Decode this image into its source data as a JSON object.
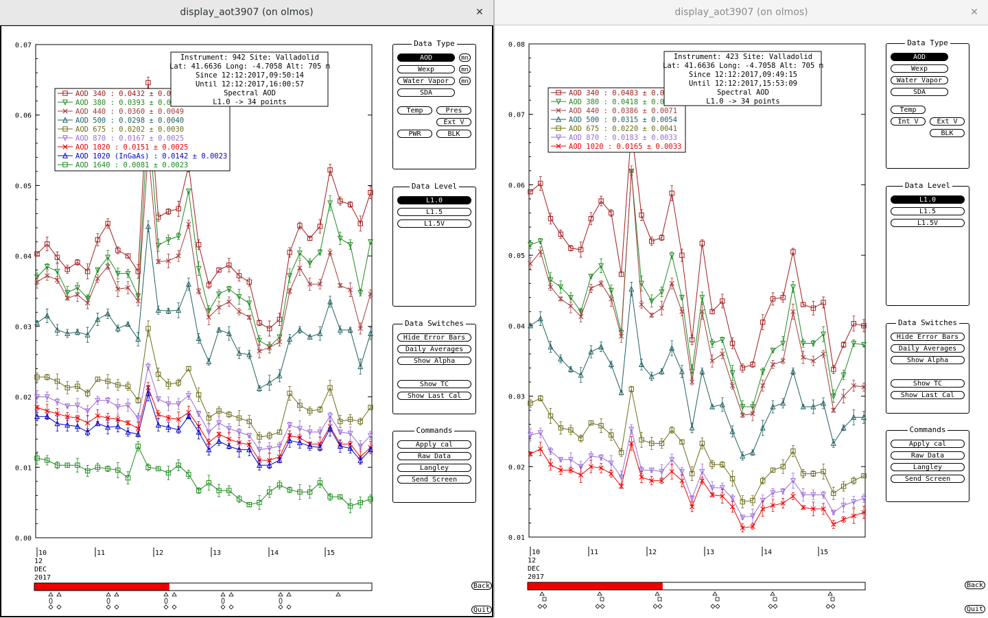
{
  "windows": [
    {
      "title": "display_aot3907 (on olmos)",
      "close_glyph": "✕",
      "info": [
        "Instrument: 942 Site: Valladolid",
        "Lat: 41.6636 Long: -4.7058 Alt: 705 m",
        "Since 12:12:2017,09:50:14",
        "Until 12:12:2017,16:00:57",
        "Spectral AOD",
        "L1.0 -> 34 points"
      ],
      "legend": [
        {
          "text": "AOD 340  : 0.0432 ± 0.0",
          "color": "#a51a1a",
          "marker": "square"
        },
        {
          "text": "AOD 380  : 0.0393 ± 0.0",
          "color": "#1f8a1f",
          "marker": "tridown"
        },
        {
          "text": "AOD 440  : 0.0360 ± 0.0049",
          "color": "#a53a3a",
          "marker": "x"
        },
        {
          "text": "AOD 500  : 0.0298 ± 0.0040",
          "color": "#1f5f5f",
          "marker": "triup"
        },
        {
          "text": "AOD 675  : 0.0202 ± 0.0030",
          "color": "#6b6b1a",
          "marker": "square"
        },
        {
          "text": "AOD 870  : 0.0167 ± 0.0025",
          "color": "#9a6ad8",
          "marker": "tridown"
        },
        {
          "text": "AOD 1020  : 0.0151 ± 0.0025",
          "color": "#ee0000",
          "marker": "x"
        },
        {
          "text": "AOD 1020 (InGaAs)  : 0.0142 ± 0.0023",
          "color": "#0000cc",
          "marker": "triup"
        },
        {
          "text": "AOD 1640  : 0.0081 ± 0.0023",
          "color": "#1a8a1a",
          "marker": "square"
        }
      ],
      "y_ticks": [
        "0.07",
        "0.06",
        "0.05",
        "0.04",
        "0.03",
        "0.02",
        "0.01",
        "0.00"
      ],
      "ylim": [
        0.0,
        0.07
      ],
      "day_ticks": [
        "10",
        "11",
        "12",
        "13",
        "14",
        "15"
      ],
      "date_lines": [
        "12",
        "DEC",
        "2017"
      ],
      "int_v": false
    },
    {
      "title": "display_aot3907 (on olmos)",
      "close_glyph": "✕",
      "info": [
        "Instrument: 423 Site: Valladolid",
        "Lat: 41.6636 Long: -4.7058 Alt: 705 m",
        "Since 12:12:2017,09:49:15",
        "Until 12:12:2017,15:53:09",
        "Spectral AOD",
        "L1.0 -> 34 points"
      ],
      "legend": [
        {
          "text": "AOD 340  : 0.0483 ± 0.0",
          "color": "#a51a1a",
          "marker": "square"
        },
        {
          "text": "AOD 380  : 0.0418 ± 0.0",
          "color": "#1f8a1f",
          "marker": "tridown"
        },
        {
          "text": "AOD 440  : 0.0386 ± 0.0071",
          "color": "#a53a3a",
          "marker": "x"
        },
        {
          "text": "AOD 500  : 0.0315 ± 0.0054",
          "color": "#1f5f5f",
          "marker": "triup"
        },
        {
          "text": "AOD 675  : 0.0220 ± 0.0041",
          "color": "#6b6b1a",
          "marker": "square"
        },
        {
          "text": "AOD 870  : 0.0183 ± 0.0033",
          "color": "#9a6ad8",
          "marker": "tridown"
        },
        {
          "text": "AOD 1020  : 0.0165 ± 0.0033",
          "color": "#ee0000",
          "marker": "x"
        }
      ],
      "y_ticks": [
        "0.08",
        "0.07",
        "0.06",
        "0.05",
        "0.04",
        "0.03",
        "0.02",
        "0.01"
      ],
      "ylim": [
        0.01,
        0.08
      ],
      "day_ticks": [
        "10",
        "11",
        "12",
        "13",
        "14",
        "15"
      ],
      "date_lines": [
        "12",
        "DEC",
        "2017"
      ],
      "int_v": true
    }
  ],
  "panels": {
    "data_type": {
      "title": "Data Type",
      "aod": "AOD",
      "wexp": "Wexp",
      "water_vapor": "Water Vapor",
      "sda": "SDA",
      "mn": "mn",
      "temp": "Temp",
      "pres": "Pres",
      "int_v": "Int V",
      "ext_v": "Ext V",
      "pwr": "PWR",
      "blk": "BLK"
    },
    "data_level": {
      "title": "Data Level",
      "l10": "L1.0",
      "l15": "L1.5",
      "l15v": "L1.5V"
    },
    "data_switches": {
      "title": "Data Switches",
      "hide_error_bars": "Hide Error Bars",
      "daily_averages": "Daily Averages",
      "show_alpha": "Show Alpha",
      "show_tc": "Show TC",
      "show_last_cal": "Show Last Cal"
    },
    "commands": {
      "title": "Commands",
      "apply_cal": "Apply cal",
      "raw_data": "Raw Data",
      "langley": "Langley",
      "send_screen": "Send Screen"
    },
    "back": "Back",
    "quit": "Quit"
  },
  "scroll_fraction": 0.4,
  "chart_data": [
    {
      "type": "line",
      "ylabel": "",
      "xlabel": "",
      "ylim": [
        0.0,
        0.07
      ],
      "x": [
        0,
        1,
        2,
        3,
        4,
        5,
        6,
        7,
        8,
        9,
        10,
        11,
        12,
        13,
        14,
        15,
        16,
        17,
        18,
        19,
        20,
        21,
        22,
        23,
        24,
        25,
        26,
        27,
        28,
        29,
        30,
        31,
        32,
        33
      ],
      "series": [
        {
          "name": "AOD 340",
          "color": "#a51a1a",
          "marker": "square",
          "values": [
            0.0403,
            0.0417,
            0.0398,
            0.0381,
            0.0391,
            0.0378,
            0.0423,
            0.0446,
            0.0408,
            0.04,
            0.0378,
            0.0646,
            0.0455,
            0.0463,
            0.0467,
            0.0528,
            0.0416,
            0.0359,
            0.038,
            0.0387,
            0.0372,
            0.0363,
            0.0305,
            0.0297,
            0.031,
            0.0405,
            0.0443,
            0.0425,
            0.0442,
            0.0522,
            0.0478,
            0.0473,
            0.0446,
            0.049
          ]
        },
        {
          "name": "AOD 380",
          "color": "#1f8a1f",
          "marker": "tridown",
          "values": [
            0.037,
            0.0385,
            0.0378,
            0.0348,
            0.0355,
            0.034,
            0.038,
            0.0398,
            0.0375,
            0.0375,
            0.0343,
            0.06,
            0.0415,
            0.0423,
            0.0428,
            0.0492,
            0.0382,
            0.0322,
            0.0346,
            0.0353,
            0.0342,
            0.0333,
            0.028,
            0.0271,
            0.0285,
            0.0372,
            0.0404,
            0.039,
            0.0405,
            0.0475,
            0.0425,
            0.0416,
            0.0348,
            0.042
          ]
        },
        {
          "name": "AOD 440",
          "color": "#a53a3a",
          "marker": "x",
          "values": [
            0.0363,
            0.0372,
            0.0366,
            0.034,
            0.0345,
            0.0333,
            0.0368,
            0.0385,
            0.0353,
            0.0355,
            0.0336,
            0.055,
            0.0392,
            0.0393,
            0.04,
            0.0445,
            0.035,
            0.0313,
            0.0327,
            0.0335,
            0.0321,
            0.0313,
            0.0265,
            0.027,
            0.0278,
            0.035,
            0.0383,
            0.036,
            0.036,
            0.0405,
            0.0358,
            0.0352,
            0.0297,
            0.0346
          ]
        },
        {
          "name": "AOD 500",
          "color": "#1f5f5f",
          "marker": "triup",
          "values": [
            0.0305,
            0.0315,
            0.0295,
            0.029,
            0.0292,
            0.0288,
            0.031,
            0.0318,
            0.0297,
            0.0303,
            0.0282,
            0.0442,
            0.0323,
            0.0322,
            0.0323,
            0.036,
            0.0283,
            0.025,
            0.0295,
            0.029,
            0.0262,
            0.026,
            0.0212,
            0.022,
            0.023,
            0.0282,
            0.0295,
            0.0285,
            0.029,
            0.0335,
            0.0295,
            0.0295,
            0.0243,
            0.029
          ]
        },
        {
          "name": "AOD 675",
          "color": "#6b6b1a",
          "marker": "square",
          "values": [
            0.0228,
            0.0228,
            0.0222,
            0.0213,
            0.0215,
            0.0205,
            0.0225,
            0.0222,
            0.0217,
            0.0215,
            0.0195,
            0.0297,
            0.0232,
            0.0218,
            0.022,
            0.024,
            0.0203,
            0.017,
            0.018,
            0.0175,
            0.017,
            0.0165,
            0.0143,
            0.0145,
            0.015,
            0.0205,
            0.0188,
            0.018,
            0.0182,
            0.0213,
            0.0165,
            0.0168,
            0.0165,
            0.0185
          ]
        },
        {
          "name": "AOD 870",
          "color": "#9a6ad8",
          "marker": "tridown",
          "values": [
            0.02,
            0.02,
            0.0193,
            0.0187,
            0.0188,
            0.018,
            0.0195,
            0.0195,
            0.0186,
            0.0188,
            0.017,
            0.0243,
            0.0197,
            0.019,
            0.019,
            0.0202,
            0.0176,
            0.015,
            0.0163,
            0.0155,
            0.015,
            0.0145,
            0.0125,
            0.0127,
            0.013,
            0.016,
            0.0155,
            0.015,
            0.015,
            0.0173,
            0.015,
            0.0148,
            0.013,
            0.0145
          ]
        },
        {
          "name": "AOD 1020",
          "color": "#ee0000",
          "marker": "x",
          "values": [
            0.0185,
            0.018,
            0.0176,
            0.0172,
            0.017,
            0.0163,
            0.0173,
            0.017,
            0.0168,
            0.0163,
            0.0155,
            0.0213,
            0.0175,
            0.017,
            0.0168,
            0.0178,
            0.0158,
            0.0135,
            0.0147,
            0.014,
            0.0135,
            0.0132,
            0.011,
            0.011,
            0.0115,
            0.0145,
            0.0142,
            0.0133,
            0.0133,
            0.0158,
            0.0133,
            0.0133,
            0.0115,
            0.0128
          ]
        },
        {
          "name": "AOD 1020 (InGaAs)",
          "color": "#0000cc",
          "marker": "triup",
          "values": [
            0.0172,
            0.0172,
            0.0162,
            0.016,
            0.0158,
            0.015,
            0.0162,
            0.0157,
            0.0158,
            0.015,
            0.0147,
            0.0205,
            0.016,
            0.0157,
            0.0153,
            0.0172,
            0.015,
            0.0125,
            0.0137,
            0.013,
            0.0125,
            0.0125,
            0.0103,
            0.0103,
            0.011,
            0.0138,
            0.0135,
            0.013,
            0.0128,
            0.0155,
            0.013,
            0.0127,
            0.011,
            0.0125
          ]
        },
        {
          "name": "AOD 1640",
          "color": "#1a8a1a",
          "marker": "square",
          "values": [
            0.0113,
            0.011,
            0.0103,
            0.0103,
            0.0103,
            0.0095,
            0.01,
            0.0098,
            0.0096,
            0.0085,
            0.013,
            0.01,
            0.0098,
            0.0092,
            0.0103,
            0.009,
            0.0067,
            0.0078,
            0.0067,
            0.0067,
            0.0055,
            0.0047,
            0.005,
            0.0065,
            0.0075,
            0.0068,
            0.0065,
            0.0065,
            0.0078,
            0.0058,
            0.0058,
            0.0045,
            0.005,
            0.0055
          ]
        }
      ]
    },
    {
      "type": "line",
      "ylabel": "",
      "xlabel": "",
      "ylim": [
        0.01,
        0.08
      ],
      "x": [
        0,
        1,
        2,
        3,
        4,
        5,
        6,
        7,
        8,
        9,
        10,
        11,
        12,
        13,
        14,
        15,
        16,
        17,
        18,
        19,
        20,
        21,
        22,
        23,
        24,
        25,
        26,
        27,
        28,
        29,
        30,
        31,
        32,
        33
      ],
      "series": [
        {
          "name": "AOD 340",
          "color": "#a51a1a",
          "marker": "square",
          "values": [
            0.059,
            0.0602,
            0.0552,
            0.053,
            0.051,
            0.0508,
            0.0552,
            0.0577,
            0.056,
            0.0473,
            0.068,
            0.0557,
            0.052,
            0.0525,
            0.0588,
            0.05,
            0.038,
            0.0517,
            0.042,
            0.0435,
            0.0375,
            0.034,
            0.0345,
            0.0405,
            0.0438,
            0.044,
            0.0505,
            0.043,
            0.0425,
            0.0433,
            0.0338,
            0.0373,
            0.0403,
            0.04
          ]
        },
        {
          "name": "AOD 380",
          "color": "#1f8a1f",
          "marker": "tridown",
          "values": [
            0.0515,
            0.052,
            0.0465,
            0.0455,
            0.044,
            0.042,
            0.047,
            0.0485,
            0.045,
            0.039,
            0.0618,
            0.046,
            0.0435,
            0.0448,
            0.05,
            0.044,
            0.0335,
            0.044,
            0.0375,
            0.038,
            0.0333,
            0.0285,
            0.0285,
            0.0335,
            0.0365,
            0.0375,
            0.0455,
            0.0375,
            0.0375,
            0.0388,
            0.03,
            0.033,
            0.0375,
            0.0373
          ]
        },
        {
          "name": "AOD 440",
          "color": "#a53a3a",
          "marker": "x",
          "values": [
            0.0488,
            0.0505,
            0.0455,
            0.0438,
            0.0428,
            0.0413,
            0.0453,
            0.046,
            0.0438,
            0.0385,
            0.062,
            0.043,
            0.0415,
            0.0425,
            0.046,
            0.042,
            0.032,
            0.042,
            0.035,
            0.036,
            0.0315,
            0.0273,
            0.0275,
            0.0315,
            0.0345,
            0.035,
            0.042,
            0.0355,
            0.035,
            0.036,
            0.028,
            0.03,
            0.0315,
            0.0313
          ]
        },
        {
          "name": "AOD 500",
          "color": "#1f5f5f",
          "marker": "triup",
          "values": [
            0.04,
            0.041,
            0.037,
            0.0353,
            0.0338,
            0.033,
            0.0363,
            0.037,
            0.0345,
            0.0305,
            0.0452,
            0.0345,
            0.0328,
            0.0335,
            0.0368,
            0.0335,
            0.0255,
            0.0335,
            0.0285,
            0.0288,
            0.025,
            0.0215,
            0.022,
            0.0255,
            0.0285,
            0.029,
            0.0335,
            0.0285,
            0.0285,
            0.029,
            0.0233,
            0.0255,
            0.027,
            0.027
          ]
        },
        {
          "name": "AOD 675",
          "color": "#6b6b1a",
          "marker": "square",
          "values": [
            0.029,
            0.0297,
            0.0272,
            0.0255,
            0.0252,
            0.024,
            0.0262,
            0.0258,
            0.0245,
            0.022,
            0.031,
            0.0238,
            0.0233,
            0.0233,
            0.0252,
            0.0235,
            0.019,
            0.0233,
            0.0203,
            0.0203,
            0.0183,
            0.015,
            0.0152,
            0.018,
            0.0195,
            0.02,
            0.0222,
            0.019,
            0.019,
            0.0193,
            0.0162,
            0.0172,
            0.018,
            0.0187
          ]
        },
        {
          "name": "AOD 870",
          "color": "#9a6ad8",
          "marker": "tridown",
          "values": [
            0.0245,
            0.0248,
            0.0222,
            0.021,
            0.021,
            0.02,
            0.0215,
            0.0213,
            0.0205,
            0.0185,
            0.0253,
            0.0195,
            0.0195,
            0.0193,
            0.021,
            0.0193,
            0.0155,
            0.0193,
            0.017,
            0.017,
            0.0155,
            0.0128,
            0.013,
            0.0152,
            0.0163,
            0.0165,
            0.018,
            0.016,
            0.016,
            0.016,
            0.0135,
            0.0145,
            0.015,
            0.0155
          ]
        },
        {
          "name": "AOD 1020",
          "color": "#ee0000",
          "marker": "x",
          "values": [
            0.0218,
            0.0225,
            0.0203,
            0.0195,
            0.0195,
            0.0188,
            0.02,
            0.0198,
            0.019,
            0.0172,
            0.0233,
            0.0185,
            0.018,
            0.018,
            0.0193,
            0.018,
            0.0143,
            0.018,
            0.016,
            0.0158,
            0.0143,
            0.0113,
            0.0115,
            0.014,
            0.0145,
            0.0148,
            0.0158,
            0.0142,
            0.014,
            0.014,
            0.0118,
            0.0125,
            0.013,
            0.0135
          ]
        }
      ]
    }
  ]
}
